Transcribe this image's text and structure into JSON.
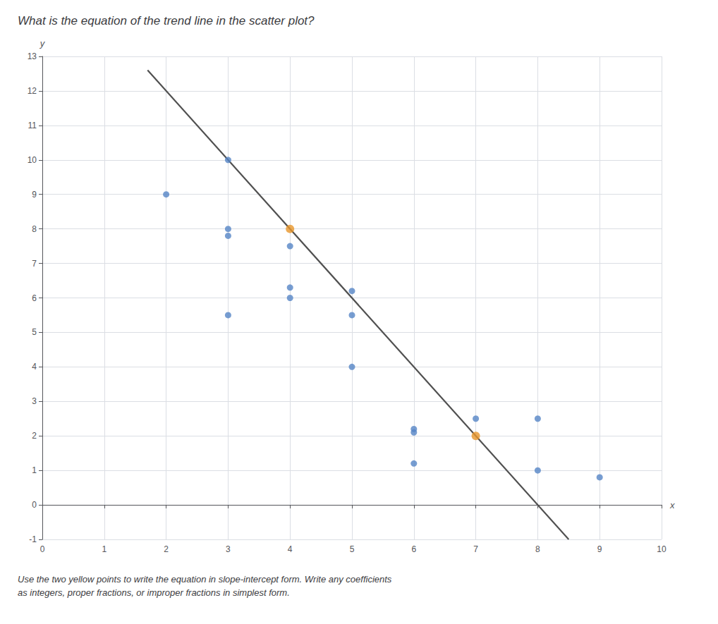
{
  "chart_data": {
    "type": "scatter",
    "title": "What is the equation of the trend line in the scatter plot?",
    "subtitle": "Use the two yellow points to write the equation in slope-intercept form. Write any coefficients\nas integers, proper fractions, or improper fractions in simplest form.",
    "xlabel": "x",
    "ylabel": "y",
    "xlim": [
      0,
      10
    ],
    "ylim": [
      -1,
      13
    ],
    "xticks": [
      0,
      1,
      2,
      3,
      4,
      5,
      6,
      7,
      8,
      9,
      10
    ],
    "yticks": [
      -1,
      0,
      1,
      2,
      3,
      4,
      5,
      6,
      7,
      8,
      9,
      10,
      11,
      12,
      13
    ],
    "grid": true,
    "series": [
      {
        "type": "scatter",
        "color": "#5585c5",
        "marker": "circle",
        "values": [
          [
            3,
            10
          ],
          [
            2,
            9
          ],
          [
            3,
            8
          ],
          [
            3,
            7.8
          ],
          [
            4,
            7.5
          ],
          [
            4,
            6.3
          ],
          [
            5,
            6.2
          ],
          [
            4,
            6.0
          ],
          [
            3,
            5.5
          ],
          [
            5,
            5.5
          ],
          [
            5,
            4.0
          ],
          [
            7,
            2.5
          ],
          [
            8,
            2.5
          ],
          [
            6,
            2.2
          ],
          [
            6,
            2.1
          ],
          [
            6,
            1.2
          ],
          [
            8,
            1.0
          ],
          [
            9,
            0.8
          ]
        ]
      },
      {
        "type": "scatter",
        "color": "#e8962a",
        "marker": "circle",
        "values": [
          [
            4,
            8
          ],
          [
            7,
            2
          ]
        ]
      },
      {
        "type": "line",
        "color": "#505050",
        "line_style": "solid",
        "values": [
          [
            1.7,
            12.6
          ],
          [
            8.5,
            -1
          ]
        ]
      }
    ]
  }
}
